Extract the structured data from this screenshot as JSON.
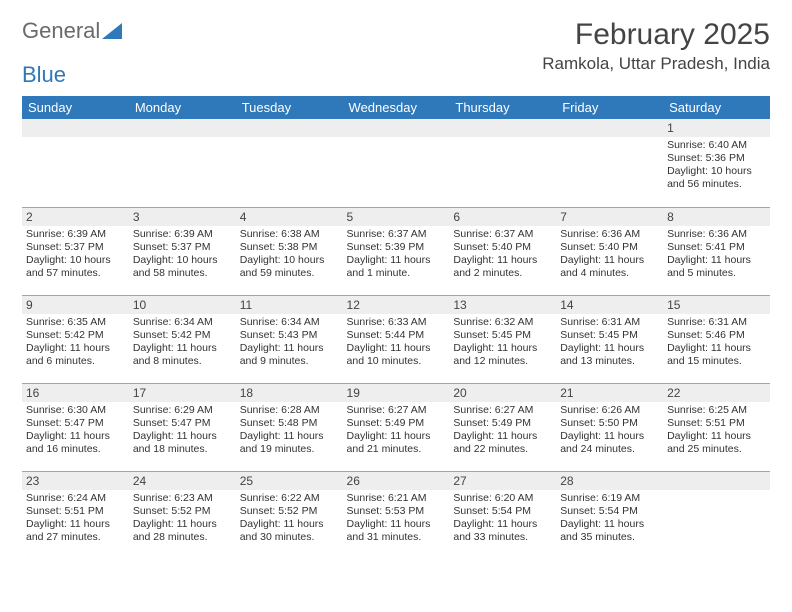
{
  "logo": {
    "word1": "General",
    "word2": "Blue"
  },
  "title": {
    "month": "February 2025",
    "location": "Ramkola, Uttar Pradesh, India"
  },
  "colors": {
    "header_bg": "#2f78b9",
    "header_fg": "#ffffff",
    "daynum_bg": "#eeeeee",
    "row_divider": "#9aa7b4",
    "text": "#333333"
  },
  "weekdays": [
    "Sunday",
    "Monday",
    "Tuesday",
    "Wednesday",
    "Thursday",
    "Friday",
    "Saturday"
  ],
  "weeks": [
    [
      {
        "blank": true
      },
      {
        "blank": true
      },
      {
        "blank": true
      },
      {
        "blank": true
      },
      {
        "blank": true
      },
      {
        "blank": true
      },
      {
        "day": "1",
        "sunrise": "Sunrise: 6:40 AM",
        "sunset": "Sunset: 5:36 PM",
        "daylight": "Daylight: 10 hours and 56 minutes."
      }
    ],
    [
      {
        "day": "2",
        "sunrise": "Sunrise: 6:39 AM",
        "sunset": "Sunset: 5:37 PM",
        "daylight": "Daylight: 10 hours and 57 minutes."
      },
      {
        "day": "3",
        "sunrise": "Sunrise: 6:39 AM",
        "sunset": "Sunset: 5:37 PM",
        "daylight": "Daylight: 10 hours and 58 minutes."
      },
      {
        "day": "4",
        "sunrise": "Sunrise: 6:38 AM",
        "sunset": "Sunset: 5:38 PM",
        "daylight": "Daylight: 10 hours and 59 minutes."
      },
      {
        "day": "5",
        "sunrise": "Sunrise: 6:37 AM",
        "sunset": "Sunset: 5:39 PM",
        "daylight": "Daylight: 11 hours and 1 minute."
      },
      {
        "day": "6",
        "sunrise": "Sunrise: 6:37 AM",
        "sunset": "Sunset: 5:40 PM",
        "daylight": "Daylight: 11 hours and 2 minutes."
      },
      {
        "day": "7",
        "sunrise": "Sunrise: 6:36 AM",
        "sunset": "Sunset: 5:40 PM",
        "daylight": "Daylight: 11 hours and 4 minutes."
      },
      {
        "day": "8",
        "sunrise": "Sunrise: 6:36 AM",
        "sunset": "Sunset: 5:41 PM",
        "daylight": "Daylight: 11 hours and 5 minutes."
      }
    ],
    [
      {
        "day": "9",
        "sunrise": "Sunrise: 6:35 AM",
        "sunset": "Sunset: 5:42 PM",
        "daylight": "Daylight: 11 hours and 6 minutes."
      },
      {
        "day": "10",
        "sunrise": "Sunrise: 6:34 AM",
        "sunset": "Sunset: 5:42 PM",
        "daylight": "Daylight: 11 hours and 8 minutes."
      },
      {
        "day": "11",
        "sunrise": "Sunrise: 6:34 AM",
        "sunset": "Sunset: 5:43 PM",
        "daylight": "Daylight: 11 hours and 9 minutes."
      },
      {
        "day": "12",
        "sunrise": "Sunrise: 6:33 AM",
        "sunset": "Sunset: 5:44 PM",
        "daylight": "Daylight: 11 hours and 10 minutes."
      },
      {
        "day": "13",
        "sunrise": "Sunrise: 6:32 AM",
        "sunset": "Sunset: 5:45 PM",
        "daylight": "Daylight: 11 hours and 12 minutes."
      },
      {
        "day": "14",
        "sunrise": "Sunrise: 6:31 AM",
        "sunset": "Sunset: 5:45 PM",
        "daylight": "Daylight: 11 hours and 13 minutes."
      },
      {
        "day": "15",
        "sunrise": "Sunrise: 6:31 AM",
        "sunset": "Sunset: 5:46 PM",
        "daylight": "Daylight: 11 hours and 15 minutes."
      }
    ],
    [
      {
        "day": "16",
        "sunrise": "Sunrise: 6:30 AM",
        "sunset": "Sunset: 5:47 PM",
        "daylight": "Daylight: 11 hours and 16 minutes."
      },
      {
        "day": "17",
        "sunrise": "Sunrise: 6:29 AM",
        "sunset": "Sunset: 5:47 PM",
        "daylight": "Daylight: 11 hours and 18 minutes."
      },
      {
        "day": "18",
        "sunrise": "Sunrise: 6:28 AM",
        "sunset": "Sunset: 5:48 PM",
        "daylight": "Daylight: 11 hours and 19 minutes."
      },
      {
        "day": "19",
        "sunrise": "Sunrise: 6:27 AM",
        "sunset": "Sunset: 5:49 PM",
        "daylight": "Daylight: 11 hours and 21 minutes."
      },
      {
        "day": "20",
        "sunrise": "Sunrise: 6:27 AM",
        "sunset": "Sunset: 5:49 PM",
        "daylight": "Daylight: 11 hours and 22 minutes."
      },
      {
        "day": "21",
        "sunrise": "Sunrise: 6:26 AM",
        "sunset": "Sunset: 5:50 PM",
        "daylight": "Daylight: 11 hours and 24 minutes."
      },
      {
        "day": "22",
        "sunrise": "Sunrise: 6:25 AM",
        "sunset": "Sunset: 5:51 PM",
        "daylight": "Daylight: 11 hours and 25 minutes."
      }
    ],
    [
      {
        "day": "23",
        "sunrise": "Sunrise: 6:24 AM",
        "sunset": "Sunset: 5:51 PM",
        "daylight": "Daylight: 11 hours and 27 minutes."
      },
      {
        "day": "24",
        "sunrise": "Sunrise: 6:23 AM",
        "sunset": "Sunset: 5:52 PM",
        "daylight": "Daylight: 11 hours and 28 minutes."
      },
      {
        "day": "25",
        "sunrise": "Sunrise: 6:22 AM",
        "sunset": "Sunset: 5:52 PM",
        "daylight": "Daylight: 11 hours and 30 minutes."
      },
      {
        "day": "26",
        "sunrise": "Sunrise: 6:21 AM",
        "sunset": "Sunset: 5:53 PM",
        "daylight": "Daylight: 11 hours and 31 minutes."
      },
      {
        "day": "27",
        "sunrise": "Sunrise: 6:20 AM",
        "sunset": "Sunset: 5:54 PM",
        "daylight": "Daylight: 11 hours and 33 minutes."
      },
      {
        "day": "28",
        "sunrise": "Sunrise: 6:19 AM",
        "sunset": "Sunset: 5:54 PM",
        "daylight": "Daylight: 11 hours and 35 minutes."
      },
      {
        "blank": true
      }
    ]
  ]
}
